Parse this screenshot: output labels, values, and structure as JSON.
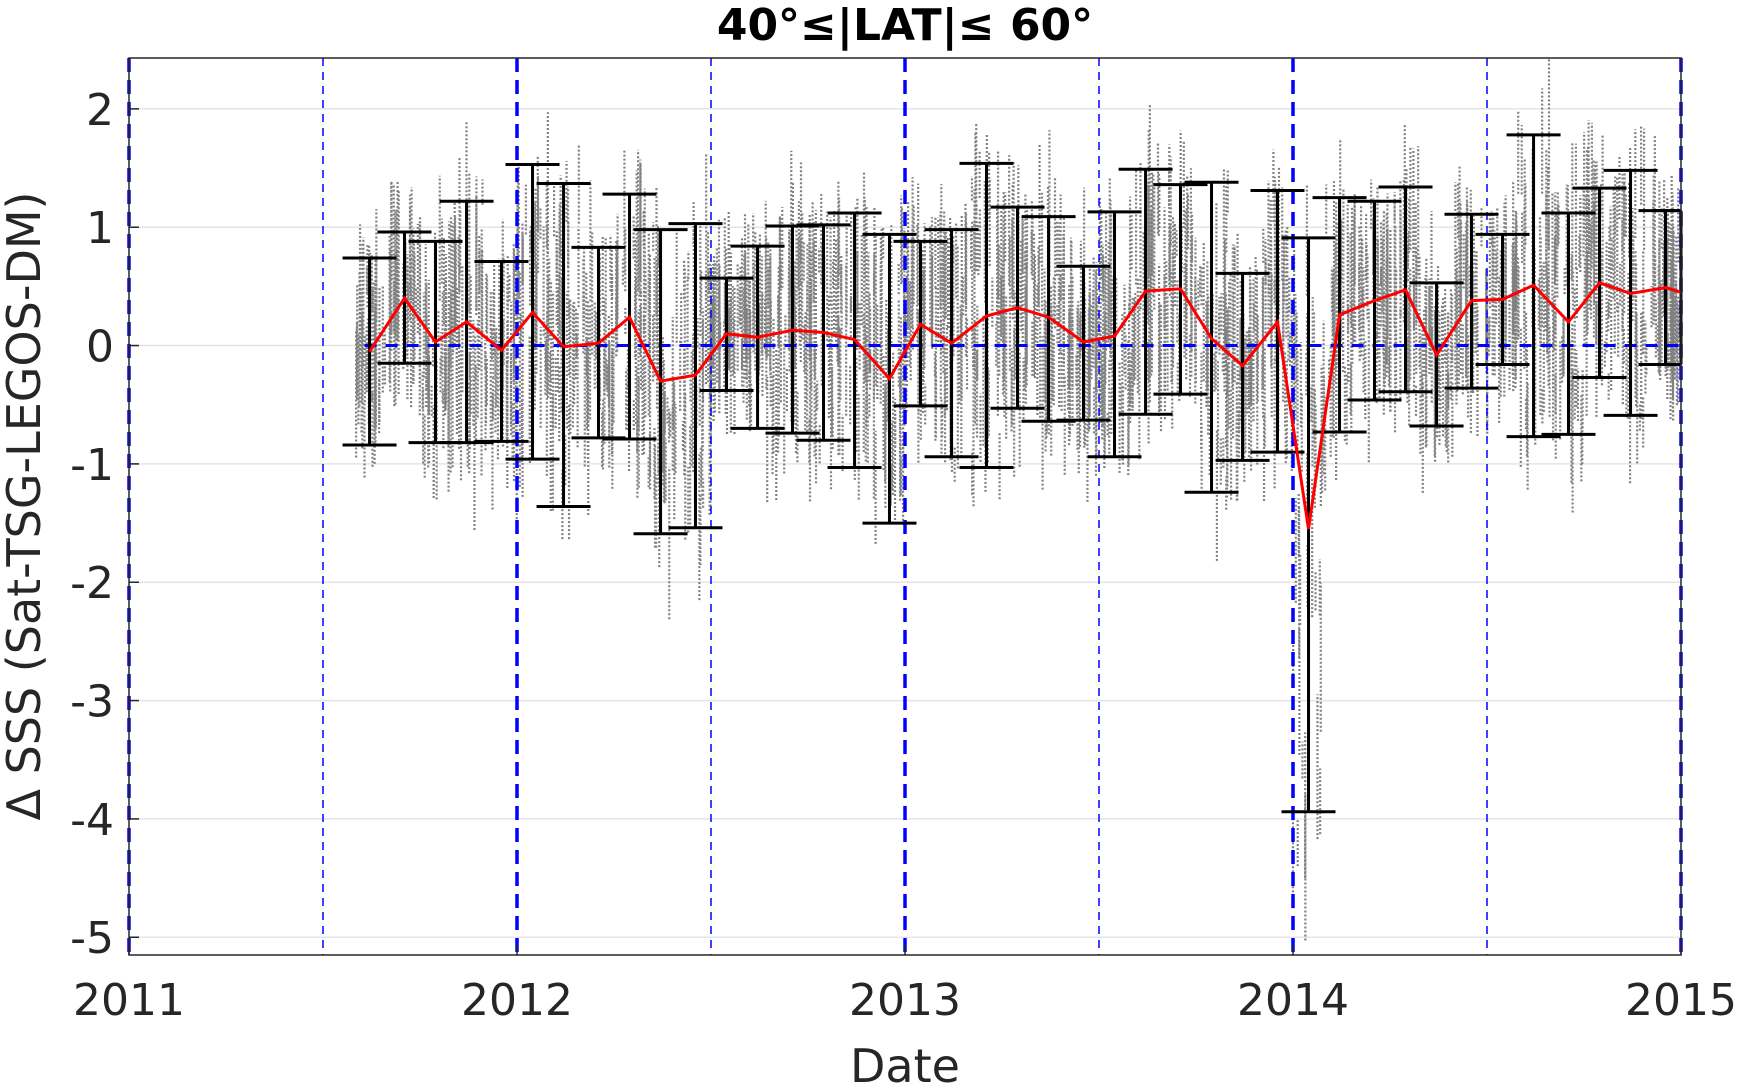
{
  "chart_data": {
    "type": "line",
    "title": "40°≤|LAT|≤ 60°",
    "xlabel": "Date",
    "ylabel": "Δ SSS (Sat-TSG-LEGOS-DM)",
    "xlim": [
      2011.0,
      2015.0
    ],
    "ylim": [
      -5.15,
      2.43
    ],
    "grid": true,
    "x_ticks": [
      2011,
      2012,
      2013,
      2014,
      2015
    ],
    "x_tick_labels": [
      "2011",
      "2012",
      "2013",
      "2014",
      "2015"
    ],
    "y_ticks": [
      -5,
      -4,
      -3,
      -2,
      -1,
      0,
      1,
      2
    ],
    "y_tick_labels": [
      "-5",
      "-4",
      "-3",
      "-2",
      "-1",
      "0",
      "1",
      "2"
    ],
    "zero_line": 0,
    "vertical_lines": {
      "year_boundaries": [
        2011,
        2012,
        2013,
        2014,
        2015
      ],
      "half_years": [
        2011.5,
        2012.5,
        2013.5,
        2014.5
      ]
    },
    "colors": {
      "mean": "#ff0000",
      "errorbar": "#000000",
      "scatter": "#808080",
      "reference": "#0000ff",
      "grid": "#e5e5e5"
    },
    "series": [
      {
        "x": [
          2011.62,
          2011.71,
          2011.79,
          2011.87,
          2011.96,
          2012.04,
          2012.12,
          2012.21,
          2012.29,
          2012.37,
          2012.46,
          2012.54,
          2012.62,
          2012.71,
          2012.79,
          2012.87,
          2012.96,
          2013.04,
          2013.12,
          2013.21,
          2013.29,
          2013.37,
          2013.46,
          2013.54,
          2013.62,
          2013.71,
          2013.79,
          2013.87,
          2013.96,
          2014.04,
          2014.12,
          2014.21,
          2014.29,
          2014.37,
          2014.46,
          2014.54,
          2014.62,
          2014.71,
          2014.79,
          2014.87,
          2014.96,
          2015.0
        ],
        "y": [
          -0.05,
          0.4,
          0.03,
          0.2,
          -0.04,
          0.28,
          -0.01,
          0.02,
          0.24,
          -0.3,
          -0.25,
          0.1,
          0.07,
          0.13,
          0.11,
          0.05,
          -0.28,
          0.18,
          0.02,
          0.25,
          0.32,
          0.24,
          0.03,
          0.08,
          0.46,
          0.48,
          0.06,
          -0.17,
          0.2,
          -1.55,
          0.26,
          0.38,
          0.47,
          -0.08,
          0.38,
          0.39,
          0.51,
          0.2,
          0.53,
          0.44,
          0.49,
          0.45
        ],
        "lower": [
          -0.84,
          -0.15,
          -0.82,
          -0.82,
          -0.81,
          -0.96,
          -1.36,
          -0.78,
          -0.79,
          -1.59,
          -1.54,
          -0.38,
          -0.7,
          -0.74,
          -0.8,
          -1.03,
          -1.5,
          -0.51,
          -0.94,
          -1.03,
          -0.53,
          -0.64,
          -0.63,
          -0.94,
          -0.58,
          -0.41,
          -1.24,
          -0.97,
          -0.9,
          -3.94,
          -0.73,
          -0.46,
          -0.39,
          -0.68,
          -0.36,
          -0.16,
          -0.77,
          -0.75,
          -0.27,
          -0.59,
          -0.16,
          -0.16
        ],
        "upper": [
          0.74,
          0.96,
          0.88,
          1.22,
          0.71,
          1.53,
          1.37,
          0.83,
          1.28,
          0.98,
          1.03,
          0.57,
          0.84,
          1.01,
          1.02,
          1.12,
          0.94,
          0.88,
          0.98,
          1.54,
          1.17,
          1.09,
          0.67,
          1.13,
          1.49,
          1.36,
          1.38,
          0.61,
          1.31,
          0.91,
          1.25,
          1.22,
          1.34,
          0.53,
          1.11,
          0.94,
          1.78,
          1.12,
          1.33,
          1.48,
          1.14,
          1.14
        ]
      }
    ]
  }
}
